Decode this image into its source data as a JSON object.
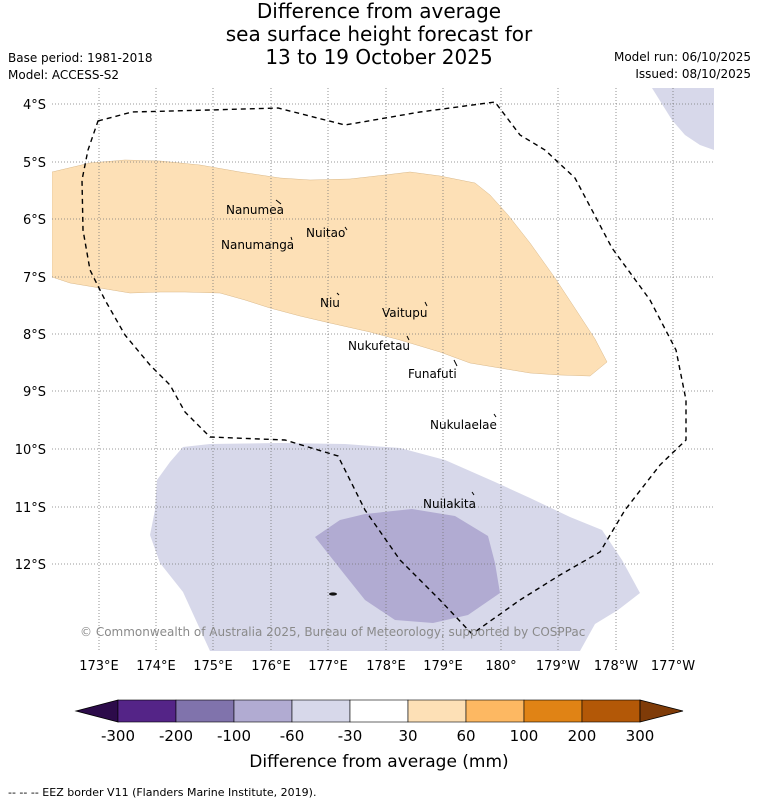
{
  "header": {
    "title_line1": "Difference from average",
    "title_line2": "sea surface height forecast for",
    "title_line3": "13 to 19 October 2025",
    "base_period": "Base period: 1981-2018",
    "model": "Model: ACCESS-S2",
    "model_run": "Model run: 06/10/2025",
    "issued": "Issued: 08/10/2025"
  },
  "map": {
    "latitudes": [
      "4°S",
      "5°S",
      "6°S",
      "7°S",
      "8°S",
      "9°S",
      "10°S",
      "11°S",
      "12°S"
    ],
    "longitudes": [
      "173°E",
      "174°E",
      "175°E",
      "176°E",
      "177°E",
      "178°E",
      "179°E",
      "180°",
      "179°W",
      "178°W",
      "177°W"
    ],
    "islands": [
      "Nanumea",
      "Nuitao",
      "Nanumanga",
      "Niu",
      "Vaitupu",
      "Nukufetau",
      "Funafuti",
      "Nukulaelae",
      "Nuilakita"
    ],
    "copyright": "© Commonwealth of Australia 2025, Bureau of Meteorology, supported by COSPPac",
    "colors": {
      "positive_30_60": "#fde0b6",
      "negative_60_30": "#d7d8ea",
      "negative_100_60": "#b1abd2",
      "border_line": "#000000"
    }
  },
  "colorbar": {
    "labels": [
      "-300",
      "-200",
      "-100",
      "-60",
      "-30",
      "30",
      "60",
      "100",
      "200",
      "300"
    ],
    "colors": [
      "#2c0b4a",
      "#542487",
      "#8073ac",
      "#b1abd2",
      "#d7d8ea",
      "#ffffff",
      "#fde0b6",
      "#fdb862",
      "#e08315",
      "#b35807",
      "#7f3b08"
    ],
    "title": "Difference from average (mm)"
  },
  "footer": {
    "legend": "-- -- -- EEZ border V11 (Flanders Marine Institute, 2019)."
  }
}
